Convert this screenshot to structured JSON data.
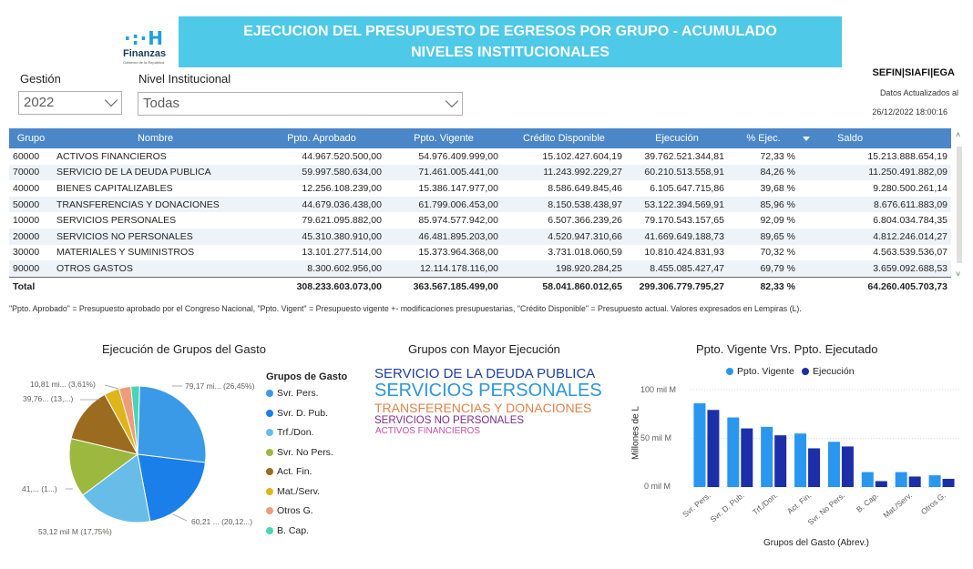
{
  "logo": {
    "mark": "·:·H",
    "name": "Finanzas",
    "sub": "Gobierno de la República"
  },
  "banner": {
    "line1": "EJECUCION DEL PRESUPUESTO DE EGRESOS POR GRUPO  - ACUMULADO",
    "line2": "NIVELES INSTITUCIONALES"
  },
  "source": "SEFIN|SIAFI|EGA",
  "updated_label": "Datos Actualizados al",
  "updated_value": "26/12/2022 18:00:16",
  "filters": {
    "gestion": {
      "label": "Gestión",
      "value": "2022"
    },
    "nivel": {
      "label": "Nivel Institucional",
      "value": "Todas"
    }
  },
  "table": {
    "headers": [
      "Grupo",
      "Nombre",
      "Ppto. Aprobado",
      "Ppto. Vigente",
      "Crédito Disponible",
      "Ejecución",
      "% Ejec.",
      "Saldo"
    ],
    "rows": [
      [
        "60000",
        "ACTIVOS FINANCIEROS",
        "44.967.520.500,00",
        "54.976.409.999,00",
        "15.102.427.604,19",
        "39.762.521.344,81",
        "72,33 %",
        "15.213.888.654,19"
      ],
      [
        "70000",
        "SERVICIO DE LA DEUDA PUBLICA",
        "59.997.580.634,00",
        "71.461.005.441,00",
        "11.243.992.229,27",
        "60.210.513.558,91",
        "84,26 %",
        "11.250.491.882,09"
      ],
      [
        "40000",
        "BIENES CAPITALIZABLES",
        "12.256.108.239,00",
        "15.386.147.977,00",
        "8.586.649.845,46",
        "6.105.647.715,86",
        "39,68 %",
        "9.280.500.261,14"
      ],
      [
        "50000",
        "TRANSFERENCIAS Y DONACIONES",
        "44.679.036.438,00",
        "61.799.006.453,00",
        "8.150.538.438,97",
        "53.122.394.569,91",
        "85,96 %",
        "8.676.611.883,09"
      ],
      [
        "10000",
        "SERVICIOS PERSONALES",
        "79.621.095.882,00",
        "85.974.577.942,00",
        "6.507.366.239,26",
        "79.170.543.157,65",
        "92,09 %",
        "6.804.034.784,35"
      ],
      [
        "20000",
        "SERVICIOS NO PERSONALES",
        "45.310.380.910,00",
        "46.481.895.203,00",
        "4.520.947.310,66",
        "41.669.649.188,73",
        "89,65 %",
        "4.812.246.014,27"
      ],
      [
        "30000",
        "MATERIALES Y SUMINISTROS",
        "13.101.277.514,00",
        "15.373.964.368,00",
        "3.731.018.060,59",
        "10.810.424.831,93",
        "70,32 %",
        "4.563.539.536,07"
      ],
      [
        "90000",
        "OTROS GASTOS",
        "8.300.602.956,00",
        "12.114.178.116,00",
        "198.920.284,25",
        "8.455.085.427,47",
        "69,79 %",
        "3.659.092.688,53"
      ]
    ],
    "total": [
      "Total",
      "",
      "308.233.603.073,00",
      "363.567.185.499,00",
      "58.041.860.012,65",
      "299.306.779.795,27",
      "82,33 %",
      "64.260.405.703,73"
    ]
  },
  "note": "\"Ppto. Aprobado\" = Presupuesto aprobado por el Congreso Nacional, \"Ppto. Vigent\" = Presupuesto vigente +- modificaciones presupuestarias, \"Crédito Disponible\" = Presupuesto actual. Valores expresados en Lempiras (L).",
  "pie": {
    "title": "Ejecución de Grupos del Gasto",
    "legend_title": "Grupos de Gasto",
    "labels": {
      "l1": "79,17 mi... (26,45%)",
      "l2": "60,21 ... (20,12...)",
      "l3": "53,12 mil M (17,75%)",
      "l4": "41,... (1...)",
      "l5": "39,76... (13,...)",
      "l6": "10,81 mi... (3,61%)"
    }
  },
  "wordcloud": {
    "title": "Grupos con Mayor Ejecución",
    "w1": "SERVICIO DE LA DEUDA PUBLICA",
    "w2": "SERVICIOS PERSONALES",
    "w3": "TRANSFERENCIAS Y DONACIONES",
    "w4": "SERVICIOS NO PERSONALES",
    "w5": "ACTIVOS FINANCIEROS"
  },
  "bar": {
    "title": "Ppto. Vigente Vrs. Ppto. Ejecutado",
    "ylabel": "Millones de L",
    "xlabel": "Grupos del Gasto (Abrev.)",
    "yticks": [
      "100 mil M",
      "50 mil M",
      "0 mil M"
    ]
  },
  "chart_data": [
    {
      "type": "pie",
      "title": "Ejecución de Grupos del Gasto",
      "legend_title": "Grupos de Gasto",
      "categories": [
        "Svr. Pers.",
        "Svr. D. Pub.",
        "Trf./Don.",
        "Svr. No Pers.",
        "Act. Fin.",
        "Mat./Serv.",
        "Otros G.",
        "B. Cap."
      ],
      "values": [
        79.17,
        60.21,
        53.12,
        41.67,
        39.76,
        10.81,
        8.46,
        6.11
      ],
      "unit": "mil M",
      "colors": [
        "#3b9ae8",
        "#1a7fe8",
        "#68bce8",
        "#9cb83e",
        "#9b6b1f",
        "#dfb51b",
        "#f19b7b",
        "#4ad4b4"
      ],
      "legend_position": "right"
    },
    {
      "type": "bar",
      "title": "Ppto. Vigente Vrs. Ppto. Ejecutado",
      "xlabel": "Grupos del Gasto (Abrev.)",
      "ylabel": "Millones de L",
      "categories": [
        "Svr. Pers.",
        "Svr. D. Pub.",
        "Trf./Don.",
        "Act. Fin.",
        "Svr. No Pers.",
        "B. Cap.",
        "Mat./Serv.",
        "Otros G."
      ],
      "series": [
        {
          "name": "Ppto. Vigente",
          "values": [
            85.97,
            71.46,
            61.8,
            54.98,
            46.48,
            15.39,
            15.37,
            12.11
          ],
          "color": "#2996f0"
        },
        {
          "name": "Ejecución",
          "values": [
            79.17,
            60.21,
            53.12,
            39.76,
            41.67,
            6.11,
            10.81,
            8.46
          ],
          "color": "#1c2fa8"
        }
      ],
      "ylim": [
        0,
        110
      ],
      "yticks": [
        0,
        50,
        100
      ],
      "legend_position": "top"
    }
  ]
}
